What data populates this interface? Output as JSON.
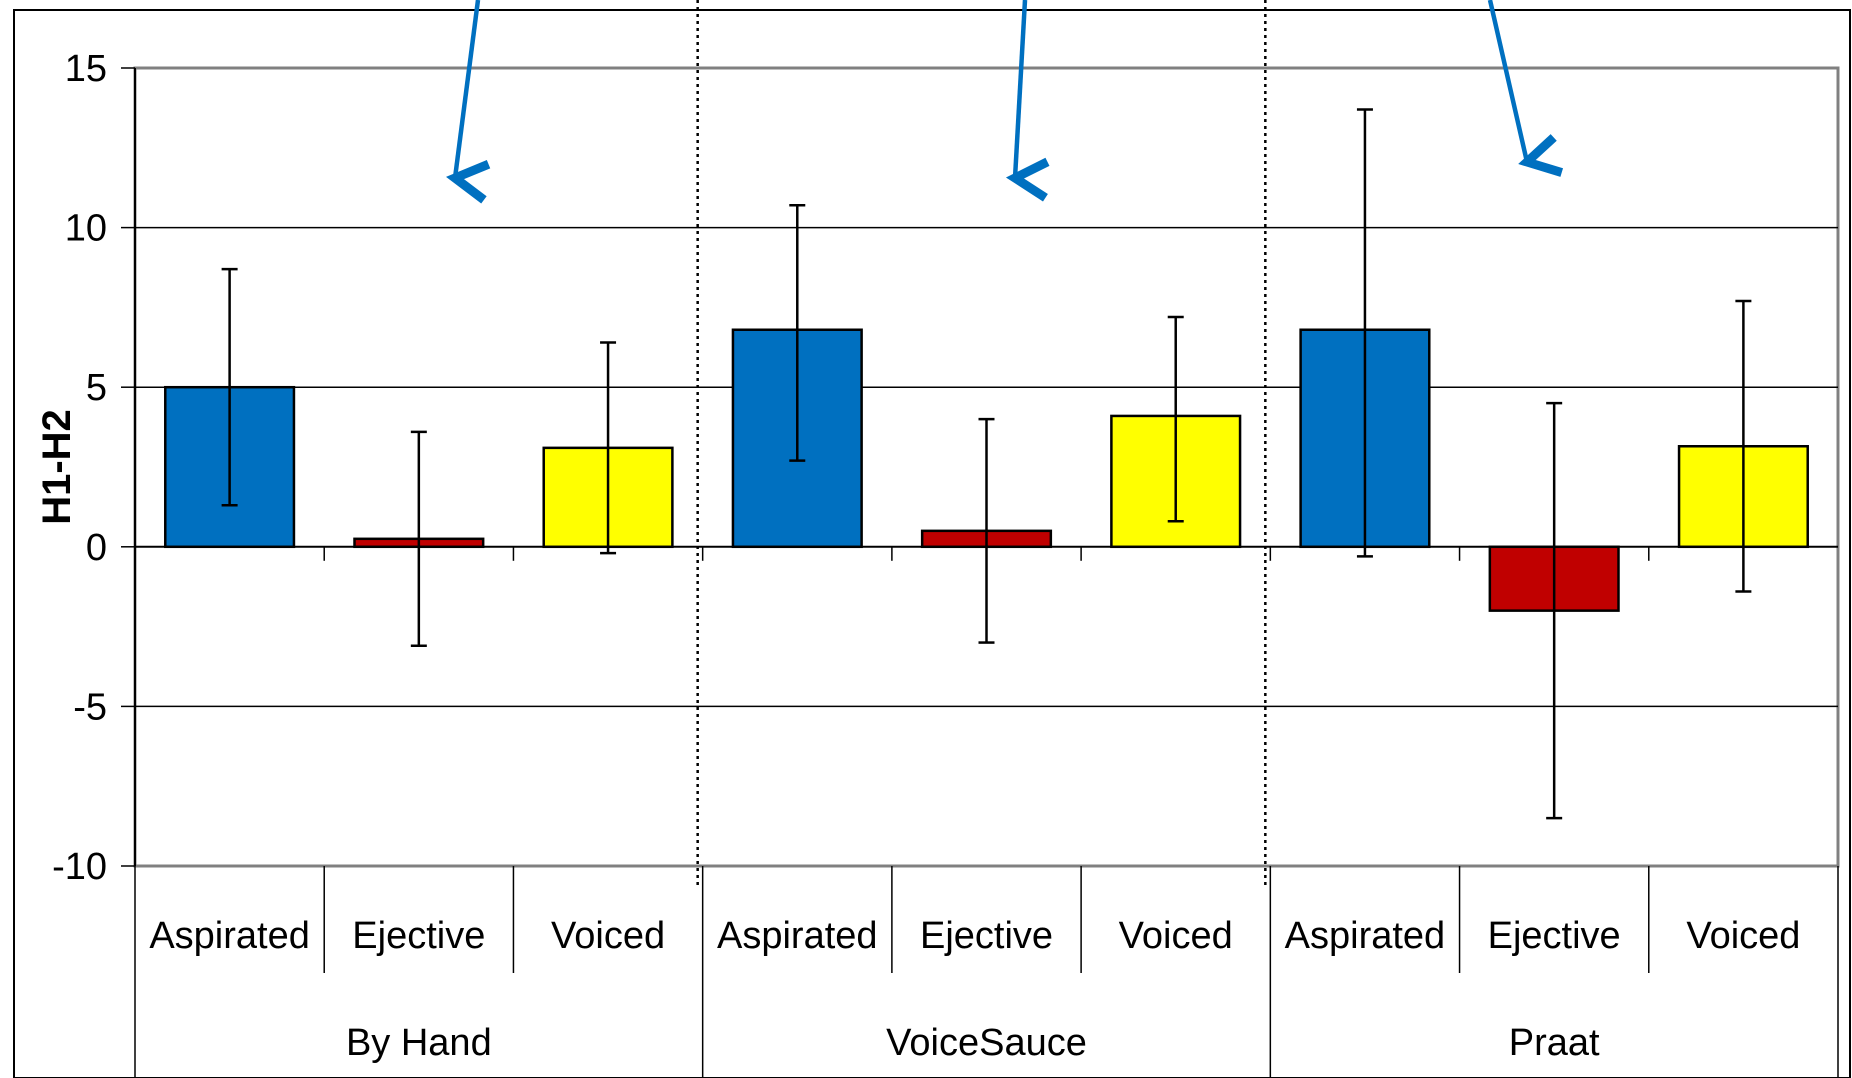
{
  "chart_data": {
    "type": "bar",
    "ylabel": "H1-H2",
    "ylim": [
      -10,
      15
    ],
    "yticks": [
      15,
      10,
      5,
      0,
      -5,
      -10
    ],
    "grid": true,
    "legend": "none",
    "groups": [
      "By Hand",
      "VoiceSauce",
      "Praat"
    ],
    "categories": [
      "Aspirated",
      "Ejective",
      "Voiced"
    ],
    "category_colors": [
      "#0070C0",
      "#C00000",
      "#FFFF00"
    ],
    "bars": [
      {
        "group": "By Hand",
        "category": "Aspirated",
        "value": 5.0,
        "err_low": 1.3,
        "err_high": 8.7
      },
      {
        "group": "By Hand",
        "category": "Ejective",
        "value": 0.25,
        "err_low": -3.1,
        "err_high": 3.6
      },
      {
        "group": "By Hand",
        "category": "Voiced",
        "value": 3.1,
        "err_low": -0.2,
        "err_high": 6.4
      },
      {
        "group": "VoiceSauce",
        "category": "Aspirated",
        "value": 6.8,
        "err_low": 2.7,
        "err_high": 10.7
      },
      {
        "group": "VoiceSauce",
        "category": "Ejective",
        "value": 0.5,
        "err_low": -3.0,
        "err_high": 4.0
      },
      {
        "group": "VoiceSauce",
        "category": "Voiced",
        "value": 4.1,
        "err_low": 0.8,
        "err_high": 7.2
      },
      {
        "group": "Praat",
        "category": "Aspirated",
        "value": 6.8,
        "err_low": -0.3,
        "err_high": 13.7
      },
      {
        "group": "Praat",
        "category": "Ejective",
        "value": -2.0,
        "err_low": -8.5,
        "err_high": 4.5
      },
      {
        "group": "Praat",
        "category": "Voiced",
        "value": 3.15,
        "err_low": -1.4,
        "err_high": 7.7
      }
    ],
    "annotation_color": "#0070C0"
  }
}
